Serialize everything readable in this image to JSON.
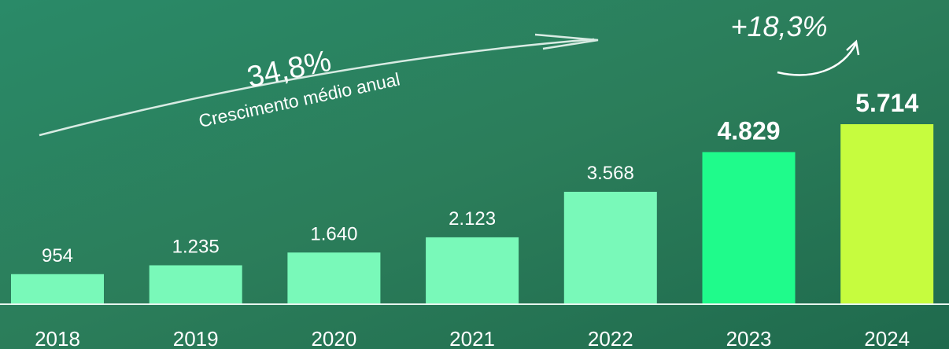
{
  "chart_data": {
    "type": "bar",
    "categories": [
      "2018",
      "2019",
      "2020",
      "2021",
      "2022",
      "2023",
      "2024"
    ],
    "values": [
      954,
      1235,
      1640,
      2123,
      3568,
      4829,
      5714
    ],
    "value_labels": [
      "954",
      "1.235",
      "1.640",
      "2.123",
      "3.568",
      "4.829",
      "5.714"
    ],
    "colors": [
      "#79f9b9",
      "#79f9b9",
      "#79f9b9",
      "#79f9b9",
      "#79f9b9",
      "#1ffb8b",
      "#c6fc3e"
    ],
    "annotations": [
      "34,8%",
      "Crescimento médio anual",
      "+18,3%"
    ]
  }
}
